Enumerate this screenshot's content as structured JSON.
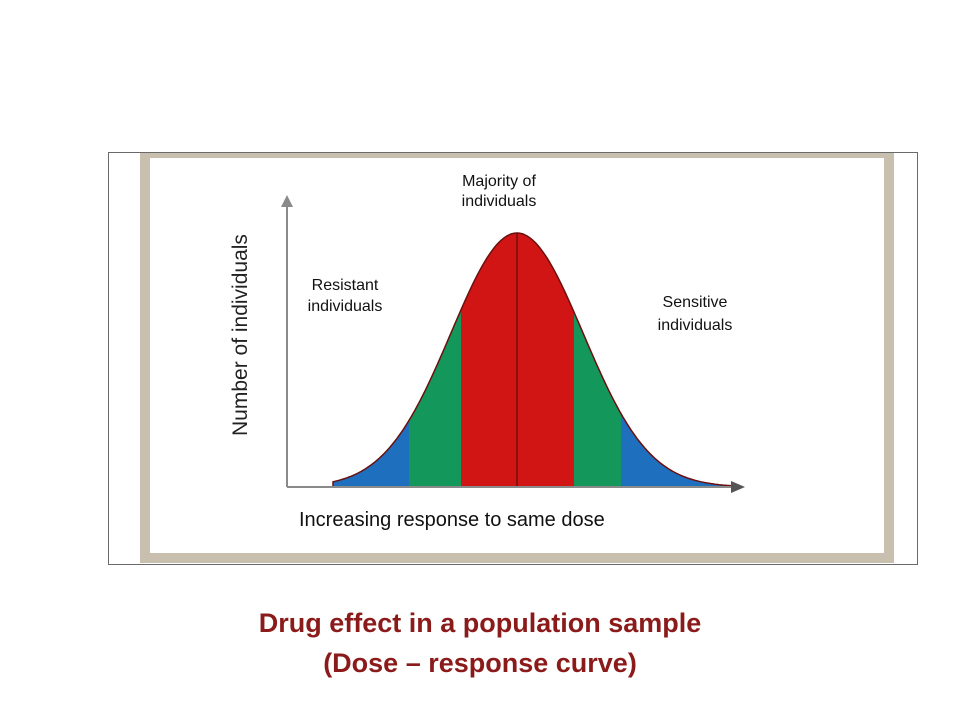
{
  "diagram": {
    "y_axis_label": "Number of individuals",
    "x_axis_label": "Increasing response to same dose",
    "labels": {
      "majority": [
        "Majority of",
        "individuals"
      ],
      "resistant": [
        "Resistant",
        "individuals"
      ],
      "sensitive": [
        "Sensitive",
        "individuals"
      ]
    },
    "colors": {
      "center_band": "#d11414",
      "middle_bands": "#14975a",
      "tail_bands": "#1f6fbf",
      "frame": "#c9bfae",
      "caption": "#8b1a1a"
    }
  },
  "caption": {
    "line1": "Drug effect in a population sample",
    "line2": "(Dose – response curve)"
  }
}
